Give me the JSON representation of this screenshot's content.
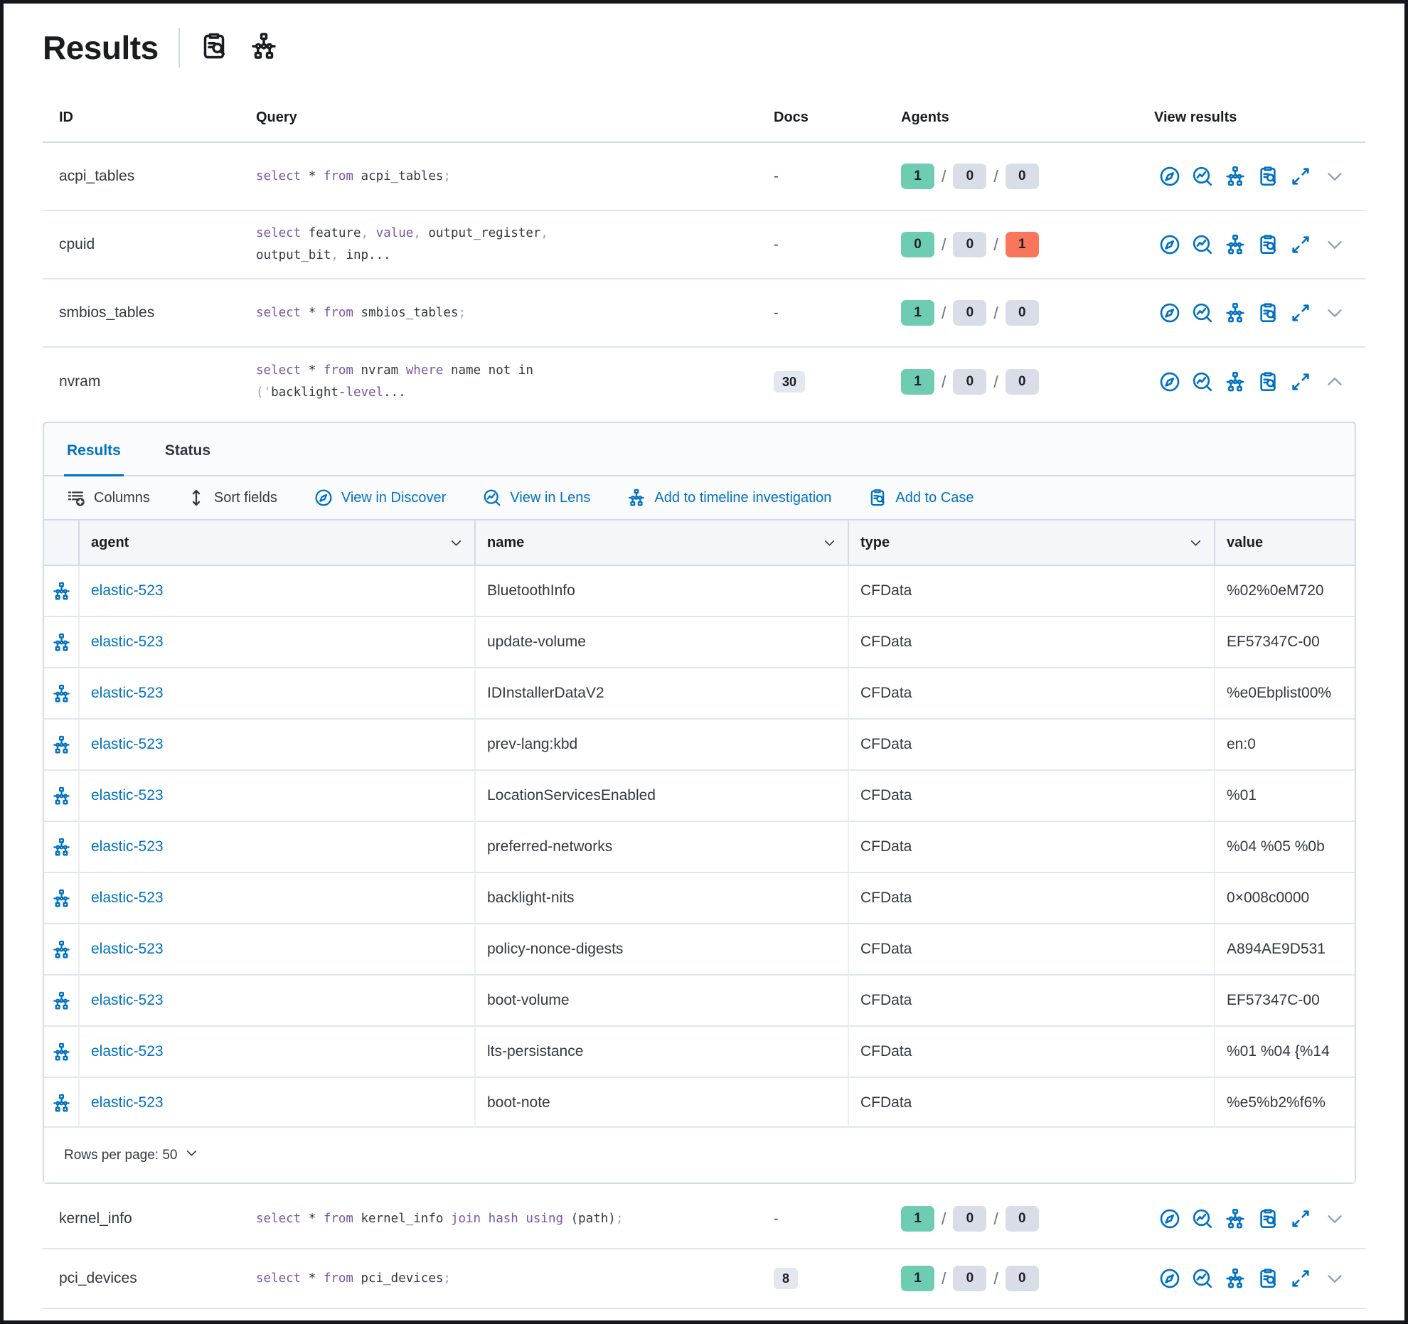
{
  "colors": {
    "text": "#343741",
    "title": "#1a1c21",
    "primary_blue": "#0071c2",
    "border": "#d3dae6",
    "row_line": "#e1e6ef",
    "keyword_purple": "#7a56a3",
    "punct_gray": "#98a2b3",
    "success_badge": "#6dccb1",
    "neutral_badge": "#d9dde8",
    "danger_badge": "#f8765b",
    "docs_badge_bg": "#e3e7f0",
    "panel_bg": "#fafbfd",
    "grid_head_bg": "#f4f6fa"
  },
  "header": {
    "title": "Results"
  },
  "queries_table": {
    "columns": {
      "id": "ID",
      "query": "Query",
      "docs": "Docs",
      "agents": "Agents",
      "view": "View results"
    },
    "rows": [
      {
        "id": "acpi_tables",
        "query": [
          [
            "k",
            "select"
          ],
          [
            "n",
            " * "
          ],
          [
            "k",
            "from"
          ],
          [
            "n",
            " acpi_tables"
          ],
          [
            "p",
            ";"
          ]
        ],
        "docs": "-",
        "docs_badge": false,
        "agents": [
          [
            "1",
            "success"
          ],
          [
            "0",
            "neutral"
          ],
          [
            "0",
            "neutral"
          ]
        ],
        "expanded": false,
        "after_panel": false
      },
      {
        "id": "cpuid",
        "query": [
          [
            "k",
            "select"
          ],
          [
            "n",
            " feature"
          ],
          [
            "p",
            ", "
          ],
          [
            "k",
            "value"
          ],
          [
            "p",
            ", "
          ],
          [
            "n",
            "output_register"
          ],
          [
            "p",
            ","
          ],
          [
            "n",
            "\noutput_bit"
          ],
          [
            "p",
            ", "
          ],
          [
            "n",
            "inp..."
          ]
        ],
        "docs": "-",
        "docs_badge": false,
        "agents": [
          [
            "0",
            "success"
          ],
          [
            "0",
            "neutral"
          ],
          [
            "1",
            "danger"
          ]
        ],
        "expanded": false,
        "after_panel": false
      },
      {
        "id": "smbios_tables",
        "query": [
          [
            "k",
            "select"
          ],
          [
            "n",
            " * "
          ],
          [
            "k",
            "from"
          ],
          [
            "n",
            " smbios_tables"
          ],
          [
            "p",
            ";"
          ]
        ],
        "docs": "-",
        "docs_badge": false,
        "agents": [
          [
            "1",
            "success"
          ],
          [
            "0",
            "neutral"
          ],
          [
            "0",
            "neutral"
          ]
        ],
        "expanded": false,
        "after_panel": false
      },
      {
        "id": "nvram",
        "query": [
          [
            "k",
            "select"
          ],
          [
            "n",
            " * "
          ],
          [
            "k",
            "from"
          ],
          [
            "n",
            " nvram "
          ],
          [
            "k",
            "where"
          ],
          [
            "n",
            " name not in\n"
          ],
          [
            "p",
            "('"
          ],
          [
            "n",
            "backlight-"
          ],
          [
            "k",
            "level"
          ],
          [
            "n",
            "..."
          ]
        ],
        "docs": "30",
        "docs_badge": true,
        "agents": [
          [
            "1",
            "success"
          ],
          [
            "0",
            "neutral"
          ],
          [
            "0",
            "neutral"
          ]
        ],
        "expanded": true,
        "after_panel": false
      },
      {
        "id": "kernel_info",
        "query": [
          [
            "k",
            "select"
          ],
          [
            "n",
            " * "
          ],
          [
            "k",
            "from"
          ],
          [
            "n",
            " kernel_info "
          ],
          [
            "k",
            "join"
          ],
          [
            "n",
            " "
          ],
          [
            "k",
            "hash"
          ],
          [
            "n",
            " "
          ],
          [
            "k",
            "using"
          ],
          [
            "n",
            " (path)"
          ],
          [
            "p",
            ";"
          ]
        ],
        "docs": "-",
        "docs_badge": false,
        "agents": [
          [
            "1",
            "success"
          ],
          [
            "0",
            "neutral"
          ],
          [
            "0",
            "neutral"
          ]
        ],
        "expanded": false,
        "after_panel": true
      },
      {
        "id": "pci_devices",
        "query": [
          [
            "k",
            "select"
          ],
          [
            "n",
            " * "
          ],
          [
            "k",
            "from"
          ],
          [
            "n",
            " pci_devices"
          ],
          [
            "p",
            ";"
          ]
        ],
        "docs": "8",
        "docs_badge": true,
        "agents": [
          [
            "1",
            "success"
          ],
          [
            "0",
            "neutral"
          ],
          [
            "0",
            "neutral"
          ]
        ],
        "expanded": false,
        "after_panel": true
      }
    ],
    "view_actions": [
      {
        "icon": "compass",
        "name": "view-in-discover-icon"
      },
      {
        "icon": "lens",
        "name": "view-in-lens-icon"
      },
      {
        "icon": "timeline",
        "name": "add-to-timeline-icon"
      },
      {
        "icon": "inspect",
        "name": "add-to-case-icon"
      },
      {
        "icon": "expand",
        "name": "expand-results-icon"
      }
    ]
  },
  "results_panel": {
    "tabs": [
      {
        "label": "Results",
        "active": true
      },
      {
        "label": "Status",
        "active": false
      }
    ],
    "toolbar": [
      {
        "label": "Columns",
        "icon": "columns",
        "style": "dark",
        "name": "columns-button"
      },
      {
        "label": "Sort fields",
        "icon": "sort",
        "style": "dark",
        "name": "sort-fields-button"
      },
      {
        "label": "View in Discover",
        "icon": "compass",
        "style": "blue",
        "name": "view-in-discover-button"
      },
      {
        "label": "View in Lens",
        "icon": "lens",
        "style": "blue",
        "name": "view-in-lens-button"
      },
      {
        "label": "Add to timeline investigation",
        "icon": "timeline",
        "style": "blue",
        "name": "add-to-timeline-button"
      },
      {
        "label": "Add to Case",
        "icon": "inspect",
        "style": "blue",
        "name": "add-to-case-button"
      }
    ],
    "grid": {
      "columns": [
        {
          "label": "agent",
          "sortable": true
        },
        {
          "label": "name",
          "sortable": true
        },
        {
          "label": "type",
          "sortable": true
        },
        {
          "label": "value",
          "sortable": false
        }
      ],
      "rows": [
        {
          "agent": "elastic-523",
          "name": "BluetoothInfo",
          "type": "CFData",
          "value": "%02%0eM720"
        },
        {
          "agent": "elastic-523",
          "name": "update-volume",
          "type": "CFData",
          "value": "EF57347C-00"
        },
        {
          "agent": "elastic-523",
          "name": "IDInstallerDataV2",
          "type": "CFData",
          "value": "%e0Ebplist00%"
        },
        {
          "agent": "elastic-523",
          "name": "prev-lang:kbd",
          "type": "CFData",
          "value": "en:0"
        },
        {
          "agent": "elastic-523",
          "name": "LocationServicesEnabled",
          "type": "CFData",
          "value": "%01"
        },
        {
          "agent": "elastic-523",
          "name": "preferred-networks",
          "type": "CFData",
          "value": "%04 %05 %0b"
        },
        {
          "agent": "elastic-523",
          "name": "backlight-nits",
          "type": "CFData",
          "value": "0×008c0000"
        },
        {
          "agent": "elastic-523",
          "name": "policy-nonce-digests",
          "type": "CFData",
          "value": "A894AE9D531"
        },
        {
          "agent": "elastic-523",
          "name": "boot-volume",
          "type": "CFData",
          "value": "EF57347C-00"
        },
        {
          "agent": "elastic-523",
          "name": "lts-persistance",
          "type": "CFData",
          "value": "%01 %04 {%14"
        },
        {
          "agent": "elastic-523",
          "name": "boot-note",
          "type": "CFData",
          "value": "%e5%b2%f6%"
        }
      ],
      "footer": {
        "rows_per_page": "Rows per page: 50"
      }
    }
  }
}
